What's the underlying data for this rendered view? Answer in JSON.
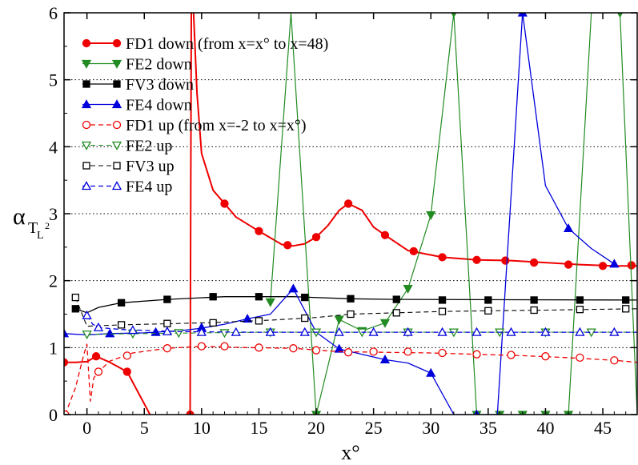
{
  "chart_data": {
    "type": "line",
    "xlabel": "x°",
    "ylabel_main": "α",
    "ylabel_sub": "T",
    "ylabel_subsub": "L",
    "ylabel_sup": "2",
    "xlim": [
      -2,
      48
    ],
    "ylim": [
      0,
      6
    ],
    "xticks": [
      0,
      5,
      10,
      15,
      20,
      25,
      30,
      35,
      40,
      45
    ],
    "yticks": [
      0,
      1,
      2,
      3,
      4,
      5,
      6
    ],
    "grid": "horizontal dotted at 1-5",
    "legend_position": "top-left",
    "series": [
      {
        "name": "FD1 down (from x=x° to x=48)",
        "color": "#ee0000",
        "dash": "solid",
        "marker": "circle",
        "filled": true,
        "stroke_width": 2,
        "points": [
          [
            -2,
            0.78
          ],
          [
            -1,
            0.78
          ],
          [
            0,
            0.79
          ],
          [
            0.8,
            0.87
          ],
          [
            2,
            0.78
          ],
          [
            3.5,
            0.64
          ],
          [
            5.5,
            0
          ]
        ],
        "markers": [
          [
            -2,
            0.78
          ],
          [
            0.8,
            0.87
          ],
          [
            3.5,
            0.64
          ]
        ]
      },
      {
        "name": "",
        "color": "#ee0000",
        "dash": "solid",
        "marker": "circle",
        "filled": true,
        "stroke_width": 2,
        "points": [
          [
            9,
            0
          ],
          [
            9.05,
            3
          ],
          [
            9.1,
            6
          ]
        ],
        "markers": [
          [
            9,
            0
          ]
        ]
      },
      {
        "name": "",
        "color": "#ee0000",
        "dash": "solid",
        "marker": "circle",
        "filled": true,
        "stroke_width": 2,
        "points": [
          [
            9.3,
            6
          ],
          [
            9.6,
            4.8
          ],
          [
            10,
            3.9
          ],
          [
            11,
            3.35
          ],
          [
            12,
            3.15
          ],
          [
            13,
            2.95
          ],
          [
            15,
            2.74
          ],
          [
            17,
            2.54
          ],
          [
            18,
            2.52
          ],
          [
            19,
            2.55
          ],
          [
            20,
            2.65
          ],
          [
            21,
            2.82
          ],
          [
            22,
            3.05
          ],
          [
            22.8,
            3.15
          ],
          [
            24,
            3.05
          ],
          [
            25,
            2.8
          ],
          [
            26,
            2.68
          ],
          [
            28,
            2.45
          ],
          [
            31,
            2.35
          ],
          [
            34,
            2.31
          ],
          [
            37,
            2.3
          ],
          [
            40,
            2.27
          ],
          [
            43,
            2.24
          ],
          [
            46,
            2.22
          ],
          [
            48,
            2.22
          ]
        ],
        "markers": [
          [
            12,
            3.15
          ],
          [
            15,
            2.74
          ],
          [
            17.5,
            2.53
          ],
          [
            20,
            2.65
          ],
          [
            22.8,
            3.15
          ],
          [
            26,
            2.68
          ],
          [
            28.5,
            2.44
          ],
          [
            31,
            2.35
          ],
          [
            34,
            2.31
          ],
          [
            36.5,
            2.3
          ],
          [
            39,
            2.27
          ],
          [
            42,
            2.24
          ],
          [
            45,
            2.22
          ],
          [
            47.5,
            2.23
          ]
        ]
      },
      {
        "name": "FE2 down",
        "color": "#228b22",
        "dash": "solid",
        "marker": "triangle-down",
        "filled": true,
        "stroke_width": 1.2,
        "points": [
          [
            16,
            1.68
          ],
          [
            17.8,
            6
          ],
          [
            20,
            0
          ],
          [
            22,
            1.42
          ],
          [
            24,
            1.25
          ],
          [
            26,
            1.37
          ],
          [
            28,
            1.88
          ],
          [
            30,
            2.98
          ],
          [
            32,
            6
          ],
          [
            34,
            0
          ],
          [
            36,
            0
          ],
          [
            38,
            0
          ],
          [
            40,
            0
          ],
          [
            42,
            0
          ],
          [
            44,
            6
          ],
          [
            46.5,
            6
          ],
          [
            48,
            0
          ]
        ],
        "markers": [
          [
            16,
            1.68
          ],
          [
            20,
            0
          ],
          [
            22,
            1.42
          ],
          [
            24,
            1.25
          ],
          [
            26,
            1.37
          ],
          [
            28,
            1.88
          ],
          [
            30,
            2.98
          ],
          [
            32,
            6
          ],
          [
            34,
            0
          ],
          [
            36,
            0
          ],
          [
            38,
            0
          ],
          [
            40,
            0
          ],
          [
            42,
            0
          ],
          [
            46.5,
            6
          ]
        ]
      },
      {
        "name": "FV3 down",
        "color": "#000000",
        "dash": "solid",
        "marker": "square",
        "filled": true,
        "stroke_width": 1.3,
        "points": [
          [
            -1,
            1.58
          ],
          [
            0,
            1.52
          ],
          [
            1,
            1.6
          ],
          [
            3,
            1.67
          ],
          [
            7,
            1.72
          ],
          [
            12,
            1.76
          ],
          [
            15.5,
            1.76
          ],
          [
            18,
            1.76
          ],
          [
            23,
            1.73
          ],
          [
            27,
            1.72
          ],
          [
            48,
            1.71
          ]
        ],
        "markers": [
          [
            -1,
            1.58
          ],
          [
            3,
            1.67
          ],
          [
            7,
            1.72
          ],
          [
            11,
            1.76
          ],
          [
            15,
            1.76
          ],
          [
            19,
            1.75
          ],
          [
            23,
            1.73
          ],
          [
            27,
            1.72
          ],
          [
            31,
            1.71
          ],
          [
            35,
            1.71
          ],
          [
            39,
            1.71
          ],
          [
            43,
            1.71
          ],
          [
            47,
            1.71
          ]
        ]
      },
      {
        "name": "FE4 down",
        "color": "#0000dd",
        "dash": "solid",
        "marker": "triangle-up",
        "filled": true,
        "stroke_width": 1.3,
        "points": [
          [
            -2,
            1.21
          ],
          [
            0,
            1.19
          ],
          [
            2,
            1.21
          ],
          [
            5,
            1.22
          ],
          [
            8,
            1.25
          ],
          [
            10,
            1.29
          ],
          [
            12,
            1.35
          ],
          [
            14,
            1.43
          ],
          [
            16,
            1.5
          ],
          [
            18,
            1.88
          ],
          [
            20,
            1.23
          ],
          [
            22,
            0.98
          ],
          [
            24,
            0.9
          ],
          [
            26,
            0.82
          ],
          [
            28,
            0.77
          ],
          [
            30,
            0.62
          ],
          [
            32,
            0
          ],
          [
            35.8,
            0
          ],
          [
            38,
            6
          ],
          [
            40,
            3.42
          ],
          [
            42,
            2.78
          ],
          [
            44,
            2.48
          ],
          [
            46,
            2.25
          ]
        ],
        "markers": [
          [
            -2,
            1.21
          ],
          [
            2,
            1.21
          ],
          [
            6,
            1.23
          ],
          [
            10,
            1.3
          ],
          [
            14,
            1.43
          ],
          [
            18,
            1.88
          ],
          [
            22,
            0.98
          ],
          [
            26,
            0.82
          ],
          [
            30,
            0.62
          ],
          [
            34,
            0
          ],
          [
            38,
            6
          ],
          [
            42,
            2.78
          ],
          [
            46,
            2.25
          ]
        ]
      },
      {
        "name": "FD1 up (from x=-2 to x=x°)",
        "color": "#ee0000",
        "dash": "dashed",
        "marker": "circle",
        "filled": false,
        "stroke_width": 1.3,
        "points": [
          [
            -1.9,
            0
          ],
          [
            -1,
            0.4
          ],
          [
            -0.3,
            0.88
          ],
          [
            0,
            1.05
          ],
          [
            0.3,
            0.2
          ],
          [
            0.6,
            0.55
          ],
          [
            1,
            0.64
          ],
          [
            2,
            0.8
          ],
          [
            4,
            0.92
          ],
          [
            7,
            0.99
          ],
          [
            10,
            1.02
          ],
          [
            14,
            1.0
          ],
          [
            18,
            0.99
          ],
          [
            22,
            0.94
          ],
          [
            26,
            0.93
          ],
          [
            30,
            0.92
          ],
          [
            34,
            0.9
          ],
          [
            38,
            0.88
          ],
          [
            42,
            0.85
          ],
          [
            46,
            0.81
          ],
          [
            48,
            0.78
          ]
        ],
        "markers": [
          [
            -1.9,
            0
          ],
          [
            1,
            0.64
          ],
          [
            3.5,
            0.88
          ],
          [
            7,
            0.99
          ],
          [
            10,
            1.02
          ],
          [
            12,
            1.02
          ],
          [
            15,
            1.0
          ],
          [
            18,
            0.99
          ],
          [
            20,
            0.96
          ],
          [
            22.8,
            0.93
          ],
          [
            25,
            0.94
          ],
          [
            28,
            0.94
          ],
          [
            31,
            0.92
          ],
          [
            34,
            0.9
          ],
          [
            37,
            0.89
          ],
          [
            40,
            0.87
          ],
          [
            43,
            0.85
          ],
          [
            46,
            0.81
          ]
        ]
      },
      {
        "name": "FE2 up",
        "color": "#228b22",
        "dash": "dashed",
        "marker": "triangle-down",
        "filled": false,
        "stroke_width": 1.1,
        "points": [
          [
            0,
            1.2
          ],
          [
            5,
            1.21
          ],
          [
            10,
            1.22
          ],
          [
            15,
            1.23
          ],
          [
            20,
            1.23
          ],
          [
            48,
            1.23
          ]
        ],
        "markers": [
          [
            0,
            1.2
          ],
          [
            4,
            1.21
          ],
          [
            8,
            1.22
          ],
          [
            12,
            1.22
          ],
          [
            16,
            1.23
          ],
          [
            20,
            1.23
          ],
          [
            24,
            1.23
          ],
          [
            28,
            1.23
          ],
          [
            32,
            1.23
          ],
          [
            36,
            1.23
          ],
          [
            40,
            1.23
          ],
          [
            44,
            1.23
          ]
        ]
      },
      {
        "name": "FV3 up",
        "color": "#000000",
        "dash": "dashed",
        "marker": "square",
        "filled": false,
        "stroke_width": 1.1,
        "points": [
          [
            -1,
            1.75
          ],
          [
            0,
            1.32
          ],
          [
            3,
            1.34
          ],
          [
            8,
            1.36
          ],
          [
            12,
            1.38
          ],
          [
            16,
            1.41
          ],
          [
            20,
            1.45
          ],
          [
            23,
            1.5
          ],
          [
            27,
            1.52
          ],
          [
            31,
            1.54
          ],
          [
            35,
            1.55
          ],
          [
            40,
            1.56
          ],
          [
            44,
            1.57
          ],
          [
            48,
            1.58
          ]
        ],
        "markers": [
          [
            -1,
            1.75
          ],
          [
            3,
            1.34
          ],
          [
            7,
            1.36
          ],
          [
            11,
            1.37
          ],
          [
            15,
            1.4
          ],
          [
            19,
            1.44
          ],
          [
            23,
            1.5
          ],
          [
            27,
            1.52
          ],
          [
            31,
            1.54
          ],
          [
            35,
            1.55
          ],
          [
            39,
            1.56
          ],
          [
            43,
            1.57
          ],
          [
            47,
            1.58
          ]
        ]
      },
      {
        "name": "FE4 up",
        "color": "#0000dd",
        "dash": "dashed",
        "marker": "triangle-up",
        "filled": false,
        "stroke_width": 1.3,
        "points": [
          [
            0,
            1.48
          ],
          [
            0.5,
            1.35
          ],
          [
            1,
            1.3
          ],
          [
            3,
            1.27
          ],
          [
            8,
            1.24
          ],
          [
            14,
            1.23
          ],
          [
            48,
            1.23
          ]
        ],
        "markers": [
          [
            0,
            1.48
          ],
          [
            1,
            1.3
          ],
          [
            4,
            1.26
          ],
          [
            7,
            1.24
          ],
          [
            10,
            1.23
          ],
          [
            13,
            1.23
          ],
          [
            16,
            1.23
          ],
          [
            19,
            1.23
          ],
          [
            22,
            1.23
          ],
          [
            25,
            1.23
          ],
          [
            28,
            1.23
          ],
          [
            31,
            1.23
          ],
          [
            34,
            1.23
          ],
          [
            37,
            1.23
          ],
          [
            40,
            1.23
          ],
          [
            43,
            1.23
          ],
          [
            46,
            1.23
          ]
        ]
      }
    ]
  }
}
